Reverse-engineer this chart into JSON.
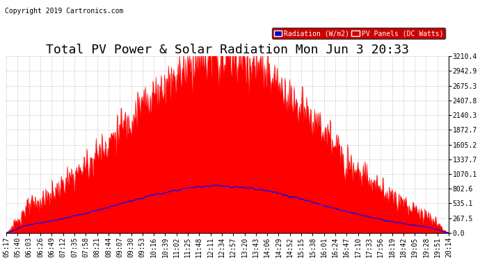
{
  "title": "Total PV Power & Solar Radiation Mon Jun 3 20:33",
  "copyright": "Copyright 2019 Cartronics.com",
  "legend_labels": [
    "Radiation (W/m2)",
    "PV Panels (DC Watts)"
  ],
  "legend_rad_color": "#0000cc",
  "legend_pv_color": "#cc0000",
  "pv_color": "#ff0000",
  "radiation_color": "#0000ff",
  "background_color": "#ffffff",
  "grid_color": "#bbbbbb",
  "y_max": 3210.4,
  "y_ticks": [
    0.0,
    267.5,
    535.1,
    802.6,
    1070.1,
    1337.7,
    1605.2,
    1872.7,
    2140.3,
    2407.8,
    2675.3,
    2942.9,
    3210.4
  ],
  "x_tick_labels": [
    "05:17",
    "05:40",
    "06:03",
    "06:26",
    "06:49",
    "07:12",
    "07:35",
    "07:58",
    "08:21",
    "08:44",
    "09:07",
    "09:30",
    "09:53",
    "10:16",
    "10:39",
    "11:02",
    "11:25",
    "11:48",
    "12:11",
    "12:34",
    "12:57",
    "13:20",
    "13:43",
    "14:06",
    "14:29",
    "14:52",
    "15:15",
    "15:38",
    "16:01",
    "16:24",
    "16:47",
    "17:10",
    "17:33",
    "17:56",
    "18:19",
    "18:42",
    "19:05",
    "19:28",
    "19:51",
    "20:14"
  ],
  "title_fontsize": 13,
  "copyright_fontsize": 7,
  "tick_fontsize": 7,
  "legend_fontsize": 7
}
